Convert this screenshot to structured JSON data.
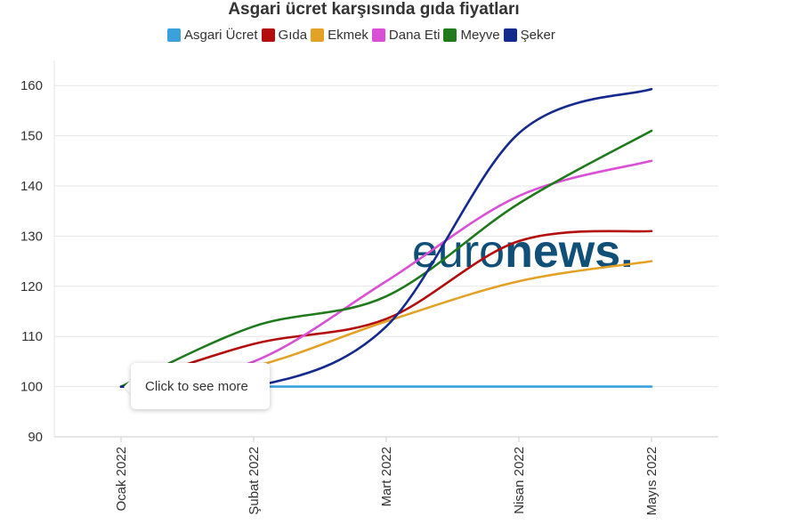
{
  "chart_data": {
    "type": "line",
    "title": "Asgari ücret karşısında gıda fiyatları",
    "categories": [
      "Ocak 2022",
      "Şubat 2022",
      "Mart 2022",
      "Nisan 2022",
      "Mayıs 2022"
    ],
    "ylim": [
      90,
      165
    ],
    "yticks": [
      90,
      100,
      110,
      120,
      130,
      140,
      150,
      160
    ],
    "grid": true,
    "legend_position": "top",
    "series": [
      {
        "name": "Asgari Ücret",
        "color": "#3aa1dc",
        "values": [
          100,
          100,
          100,
          100,
          100
        ]
      },
      {
        "name": "Gıda",
        "color": "#b30d0d",
        "values": [
          100,
          108.5,
          113.5,
          129,
          131
        ]
      },
      {
        "name": "Ekmek",
        "color": "#e3a126",
        "values": [
          100,
          104,
          113,
          121,
          125
        ]
      },
      {
        "name": "Dana Eti",
        "color": "#d94fd6",
        "values": [
          100,
          105,
          121,
          138,
          145
        ]
      },
      {
        "name": "Meyve",
        "color": "#1f7a1c",
        "values": [
          100,
          112,
          118,
          136.5,
          151
        ]
      },
      {
        "name": "Şeker",
        "color": "#142a8c",
        "values": [
          100,
          100,
          112,
          150.5,
          159.3
        ]
      }
    ]
  },
  "watermark": {
    "text_light": "euro",
    "text_bold": "news.",
    "color": "#0f4f78"
  },
  "tooltip": {
    "text": "Click to see more"
  }
}
